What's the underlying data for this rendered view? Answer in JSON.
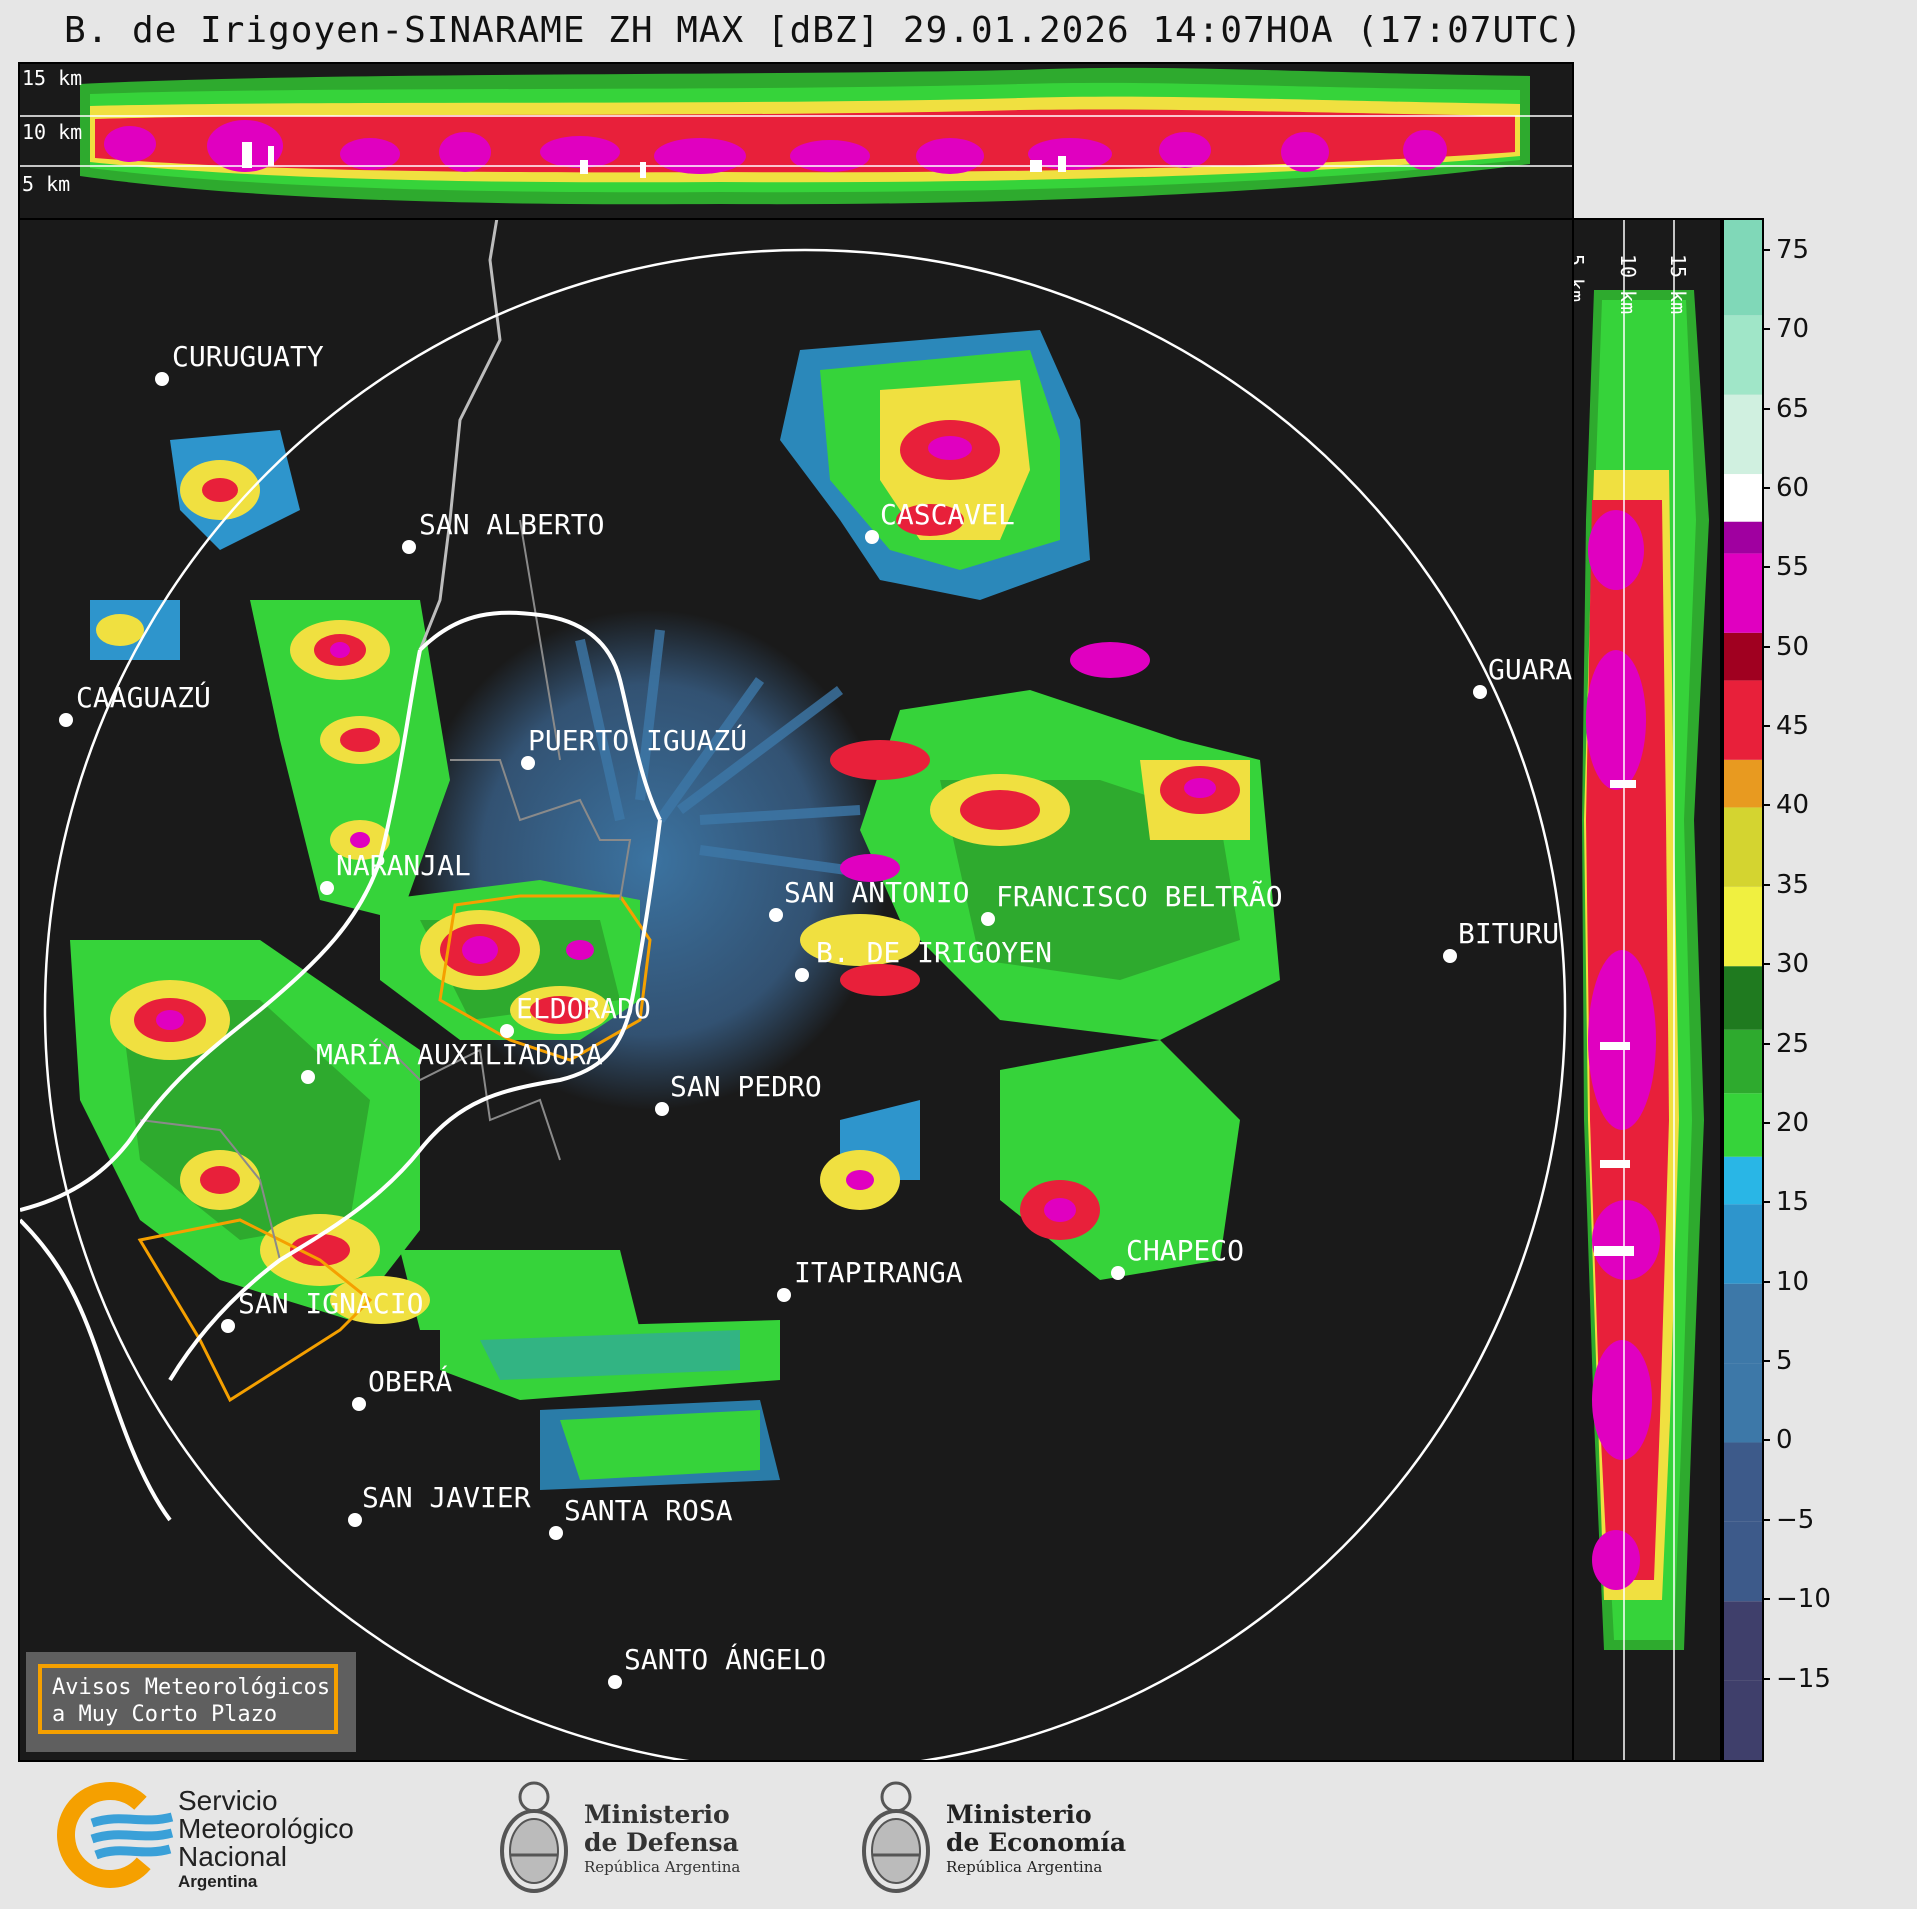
{
  "title": "B. de Irigoyen-SINARAME ZH MAX [dBZ] 29.01.2026 14:07HOA (17:07UTC)",
  "top_panel": {
    "altitudes": [
      "15 km",
      "10 km",
      "5 km"
    ]
  },
  "side_panel": {
    "altitudes": [
      "5 km",
      "10 km",
      "15 km"
    ]
  },
  "colorbar": {
    "unit": "dBZ",
    "ticks": [
      "75",
      "70",
      "65",
      "60",
      "55",
      "50",
      "45",
      "40",
      "35",
      "30",
      "25",
      "20",
      "15",
      "10",
      "5",
      "0",
      "−5",
      "−10",
      "−15"
    ],
    "tick_values": [
      75,
      70,
      65,
      60,
      55,
      50,
      45,
      40,
      35,
      30,
      25,
      20,
      15,
      10,
      5,
      0,
      -5,
      -10,
      -15
    ],
    "range": [
      -20,
      77
    ],
    "colors": {
      "minus20": "#3f3f6b",
      "minus10": "#3d5a8a",
      "zero": "#3d78a8",
      "ten": "#2e95cc",
      "fifteen": "#29b6e6",
      "twenty": "#36d33a",
      "twentyfive": "#2eaa2e",
      "thirty": "#1f7a1f",
      "thirtyone": "#f0f040",
      "thirtyfive": "#d4d430",
      "forty": "#e89a20",
      "fortyfive": "#e8203a",
      "fifty": "#a00020",
      "fiftyfive": "#e000c0",
      "fiftyeight": "#a000a0",
      "sixty": "#ffffff",
      "sixtyfive": "#d0f0e0",
      "seventy": "#a0e6c8",
      "seventyfive": "#80d8b8"
    }
  },
  "map": {
    "center": "B. DE IRIGOYEN",
    "cities": [
      {
        "name": "CURUGUATY"
      },
      {
        "name": "SAN ALBERTO"
      },
      {
        "name": "CASCAVEL"
      },
      {
        "name": "CAAGUAZÚ"
      },
      {
        "name": "GUARA"
      },
      {
        "name": "PUERTO IGUAZÚ"
      },
      {
        "name": "NARANJAL"
      },
      {
        "name": "SAN ANTONIO"
      },
      {
        "name": "FRANCISCO BELTRÃO"
      },
      {
        "name": "BITURU"
      },
      {
        "name": "B. DE IRIGOYEN"
      },
      {
        "name": "ELDORADO"
      },
      {
        "name": "MARÍA AUXILIADORA"
      },
      {
        "name": "SAN PEDRO"
      },
      {
        "name": "ITAPIRANGA"
      },
      {
        "name": "CHAPECO"
      },
      {
        "name": "SAN IGNACIO"
      },
      {
        "name": "OBERÁ"
      },
      {
        "name": "SAN JAVIER"
      },
      {
        "name": "SANTA ROSA"
      },
      {
        "name": "SANTO ÁNGELO"
      }
    ],
    "warning_color": "#f5a000",
    "range_ring_color": "#ffffff"
  },
  "legend": {
    "line1": "Avisos Meteorológicos",
    "line2": "a Muy Corto Plazo"
  },
  "footer": {
    "smn": {
      "line1": "Servicio",
      "line2": "Meteorológico",
      "line3": "Nacional",
      "line4": "Argentina"
    },
    "defensa": {
      "line1": "Ministerio",
      "line2": "de Defensa",
      "line3": "República Argentina"
    },
    "economia": {
      "line1": "Ministerio",
      "line2": "de Economía",
      "line3": "República Argentina"
    },
    "smn_colors": {
      "orange": "#f5a000",
      "blue": "#3aa0d8"
    }
  }
}
